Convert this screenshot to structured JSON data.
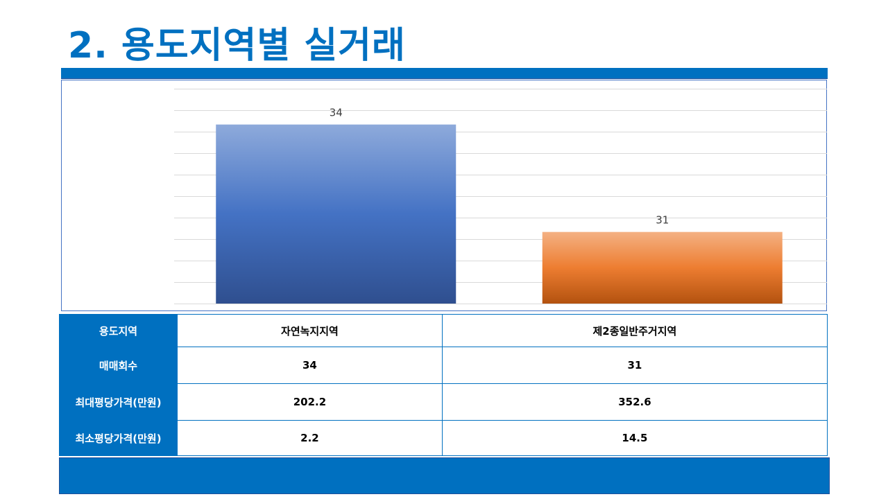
{
  "title": "2. 용도지역별 실거래",
  "chart_data": {
    "type": "bar",
    "categories": [
      "자연녹지지역",
      "제2종일반주거지역"
    ],
    "values": [
      34,
      31
    ],
    "data_labels": [
      "34",
      "31"
    ],
    "ylim": [
      29,
      35
    ],
    "grid": true,
    "colors": {
      "bar1_top": "#8eaadb",
      "bar1_mid": "#4472c4",
      "bar1_bottom": "#2f4f8f",
      "bar2_top": "#f4b183",
      "bar2_mid": "#ed7d31",
      "bar2_bottom": "#b3520f"
    }
  },
  "table": {
    "rows": [
      {
        "label": "용도지역",
        "cells": [
          "자연녹지지역",
          "제2종일반주거지역"
        ]
      },
      {
        "label": "매매회수",
        "cells": [
          "34",
          "31"
        ]
      },
      {
        "label": "최대평당가격(만원)",
        "cells": [
          "202.2",
          "352.6"
        ]
      },
      {
        "label": "최소평당가격(만원)",
        "cells": [
          "2.2",
          "14.5"
        ]
      }
    ]
  },
  "colors": {
    "accent": "#0070c0"
  }
}
